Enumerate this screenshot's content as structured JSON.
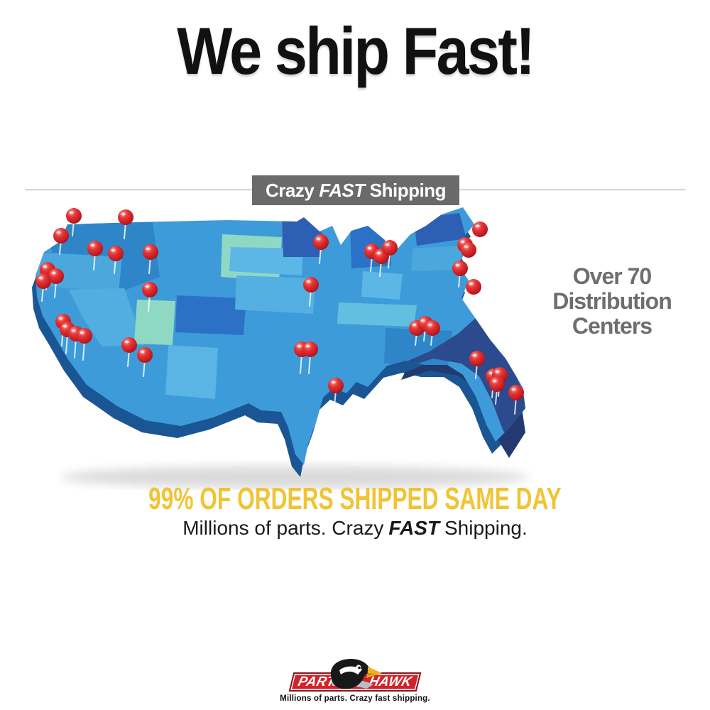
{
  "title": "We ship Fast!",
  "divider_banner": {
    "prefix": "Crazy",
    "emphasis": "FAST",
    "suffix": "Shipping",
    "background_color": "#6a6a6a",
    "text_color": "#ffffff"
  },
  "map": {
    "caption_lines": [
      "Over 70",
      "Distribution",
      "Centers"
    ],
    "caption_color": "#6e6e6e",
    "pin_color": "#cf2127",
    "pin_count": 37,
    "pins": [
      [
        79,
        14,
        28
      ],
      [
        152,
        16,
        30
      ],
      [
        61,
        42,
        26
      ],
      [
        109,
        60,
        30
      ],
      [
        187,
        65,
        30
      ],
      [
        138,
        67,
        28
      ],
      [
        42,
        90,
        28
      ],
      [
        54,
        99,
        30
      ],
      [
        36,
        106,
        28
      ],
      [
        64,
        163,
        34
      ],
      [
        70,
        174,
        34
      ],
      [
        82,
        180,
        34
      ],
      [
        94,
        183,
        34
      ],
      [
        157,
        196,
        30
      ],
      [
        179,
        210,
        30
      ],
      [
        186,
        118,
        30
      ],
      [
        427,
        51,
        30
      ],
      [
        499,
        64,
        28
      ],
      [
        512,
        71,
        28
      ],
      [
        524,
        59,
        28
      ],
      [
        413,
        111,
        30
      ],
      [
        651,
        33,
        26
      ],
      [
        630,
        55,
        26
      ],
      [
        635,
        62,
        24
      ],
      [
        623,
        88,
        26
      ],
      [
        642,
        114,
        28
      ],
      [
        562,
        172,
        24
      ],
      [
        574,
        166,
        24
      ],
      [
        584,
        172,
        24
      ],
      [
        647,
        215,
        28
      ],
      [
        670,
        240,
        30
      ],
      [
        679,
        238,
        30
      ],
      [
        675,
        251,
        28
      ],
      [
        702,
        263,
        30
      ],
      [
        400,
        202,
        34
      ],
      [
        412,
        202,
        34
      ],
      [
        448,
        253,
        30
      ]
    ],
    "palette": {
      "base_blue": "#3e9bd9",
      "light_blue": "#5ab4e4",
      "dark_blue": "#2b72c6",
      "navy_blue": "#2d5fb4",
      "teal_green": "#8fd8c4",
      "florida_navy": "#2c4a8e",
      "extrusion": "#1b5694"
    }
  },
  "headline": {
    "text": "99% OF ORDERS SHIPPED SAME DAY",
    "color": "#f0c434"
  },
  "subheadline": {
    "prefix": "Millions of parts. Crazy",
    "emphasis": "FAST",
    "suffix": "Shipping."
  },
  "logo": {
    "parts_label": "PARTS",
    "hawk_label": "HAWK",
    "tagline": "Millions of parts. Crazy fast shipping.",
    "banner_red": "#d2232a"
  }
}
